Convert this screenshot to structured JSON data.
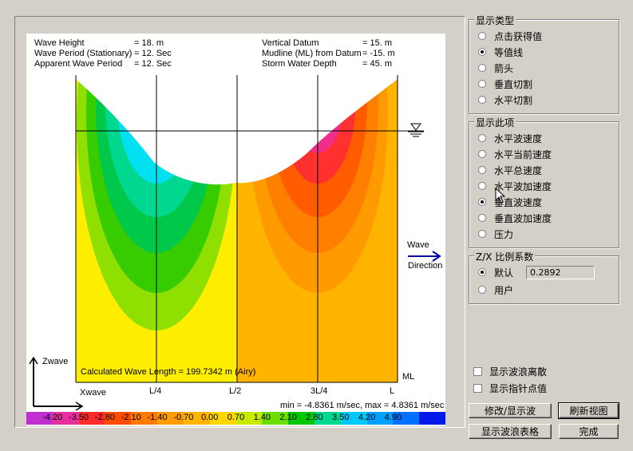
{
  "plot": {
    "info_left": [
      {
        "label": "Wave Height",
        "value": "= 18. m"
      },
      {
        "label": "Wave Period (Stationary)",
        "value": "= 12. Sec"
      },
      {
        "label": "Apparent Wave Period",
        "value": "= 12. Sec"
      }
    ],
    "info_right": [
      {
        "label": "Vertical Datum",
        "value": "= 15. m"
      },
      {
        "label": "Mudline (ML) from Datum",
        "value": "= -15. m"
      },
      {
        "label": "Storm Water Depth",
        "value": "= 45. m"
      }
    ],
    "wave_label_1": "Wave",
    "wave_label_2": "Direction",
    "ml_label": "ML",
    "wave_length_text": "Calculated Wave Length = 199.7342 m  (Airy)",
    "axis_z": "Zwave",
    "axis_x": "Xwave",
    "x_ticks": [
      "L/4",
      "L/2",
      "3L/4",
      "L"
    ],
    "minmax": "min = -4.8361 m/sec,  max = 4.8361 m/sec",
    "legend_values": [
      "-4.20",
      "-3.50",
      "-2.80",
      "-2.10",
      "-1.40",
      "-0.70",
      "0.00",
      "0.70",
      "1.40",
      "2.10",
      "2.80",
      "3.50",
      "4.20",
      "4.90"
    ],
    "legend_colors": [
      "#c12fd0",
      "#e92fa0",
      "#ff2a2a",
      "#ff4d00",
      "#ff7a00",
      "#ff9c00",
      "#ffb400",
      "#ffd700",
      "#c8ea00",
      "#6cdf00",
      "#00c800",
      "#00d890",
      "#00c8f8",
      "#00a0ff",
      "#0070ff",
      "#0018e8"
    ]
  },
  "display_type": {
    "title": "显示类型",
    "options": [
      "点击获得值",
      "等值线",
      "箭头",
      "垂直切割",
      "水平切割"
    ],
    "selected_index": 1
  },
  "display_item": {
    "title": "显示此项",
    "options": [
      "水平波速度",
      "水平当前速度",
      "水平总速度",
      "水平波加速度",
      "垂直波速度",
      "垂直波加速度",
      "压力"
    ],
    "selected_index": 4
  },
  "scale": {
    "title": "Z/X 比例系数",
    "default_label": "默认",
    "user_label": "用户",
    "value": "0.2892",
    "selected": "default"
  },
  "checks": {
    "show_wave_dispersion": "显示波浪离散",
    "show_pointer_values": "显示指针点值"
  },
  "buttons": {
    "modify": "修改/显示波",
    "refresh": "刷新视图",
    "table": "显示波浪表格",
    "done": "完成"
  }
}
